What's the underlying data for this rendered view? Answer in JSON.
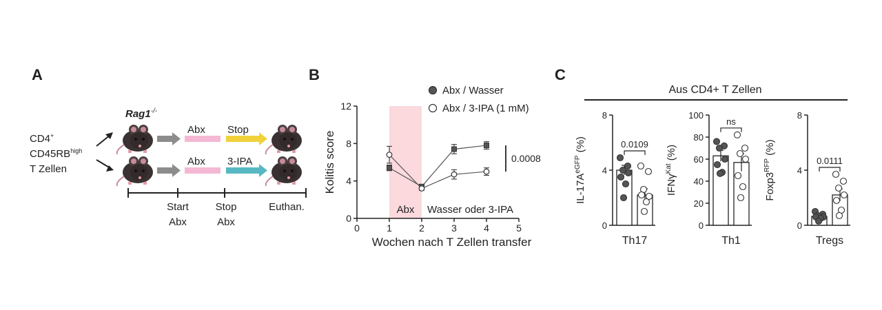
{
  "panels": {
    "A": {
      "letter": "A",
      "mouse_strain": "Rag1",
      "mouse_strain_sup": "-/-",
      "cells_line1": "CD4",
      "cells_line1_sup": "+",
      "cells_line2": "CD45RB",
      "cells_line2_sup": "high",
      "cells_line3": "T Zellen",
      "top_arrow1_label": "Abx",
      "top_arrow2_label": "Stop",
      "bottom_arrow1_label": "Abx",
      "bottom_arrow2_label": "3-IPA",
      "timeline": [
        {
          "line1": "Start",
          "line2": "Abx"
        },
        {
          "line1": "Stop",
          "line2": "Abx"
        },
        {
          "line1": "Euthan.",
          "line2": ""
        }
      ],
      "colors": {
        "mouse": "#3a3232",
        "grey_arrow": "#8c8c8c",
        "pink_arrow": "#f4b8d4",
        "yellow_arrow": "#f2d23a",
        "teal_arrow": "#58b8c2"
      }
    },
    "B": {
      "letter": "B"
    },
    "C": {
      "letter": "C",
      "header": "Aus CD4+ T Zellen"
    }
  },
  "chart_data": [
    {
      "type": "line",
      "panel": "B",
      "xlabel": "Wochen nach T Zellen transfer",
      "ylabel": "Kolitis score",
      "xlim": [
        0,
        5
      ],
      "ylim": [
        0,
        12
      ],
      "xticks": [
        0,
        1,
        2,
        3,
        4,
        5
      ],
      "yticks": [
        0,
        4,
        8,
        12
      ],
      "x": [
        1,
        2,
        3,
        4
      ],
      "series": [
        {
          "name": "Abx / Wasser",
          "marker": "filled",
          "values": [
            5.4,
            3.4,
            7.4,
            7.8
          ],
          "errors": [
            0.3,
            0.2,
            0.5,
            0.4
          ]
        },
        {
          "name": "Abx / 3-IPA (1 mM)",
          "marker": "open",
          "values": [
            6.8,
            3.2,
            4.7,
            5.0
          ],
          "errors": [
            0.9,
            0.2,
            0.5,
            0.4
          ]
        }
      ],
      "shaded_region": {
        "x": [
          1,
          2
        ],
        "label": "Abx",
        "color": "#fbd9dd"
      },
      "region_label_after": "Wasser oder 3-IPA",
      "significance": "0.0008",
      "grid": false,
      "legend_position": "top"
    },
    {
      "type": "bar",
      "panel": "C",
      "xlabel": "Th17",
      "ylabel": "IL-17A",
      "ylabel_sup": "eGFP",
      "ylabel_unit": "(%)",
      "ylim": [
        0,
        8
      ],
      "yticks": [
        0,
        4,
        8
      ],
      "bars": [
        {
          "marker": "filled",
          "mean": 4.0,
          "sem": 0.35,
          "points": [
            4.9,
            4.3,
            4.0,
            3.8,
            3.5,
            3.0,
            2.0
          ]
        },
        {
          "marker": "open",
          "mean": 2.2,
          "sem": 0.45,
          "points": [
            4.3,
            3.9,
            2.6,
            2.1,
            2.2,
            1.7,
            1.0
          ]
        }
      ],
      "significance": "0.0109"
    },
    {
      "type": "bar",
      "panel": "C",
      "xlabel": "Th1",
      "ylabel": "IFNγ",
      "ylabel_sup": "Kat",
      "ylabel_unit": "(%)",
      "ylim": [
        0,
        100
      ],
      "yticks": [
        0,
        20,
        40,
        60,
        80,
        100
      ],
      "bars": [
        {
          "marker": "filled",
          "mean": 63,
          "sem": 5,
          "points": [
            76,
            72,
            70,
            60,
            55,
            48,
            47
          ]
        },
        {
          "marker": "open",
          "mean": 57,
          "sem": 8,
          "points": [
            82,
            70,
            65,
            60,
            45,
            35,
            25
          ]
        }
      ],
      "significance": "ns"
    },
    {
      "type": "bar",
      "panel": "C",
      "xlabel": "Tregs",
      "ylabel": "Foxp3",
      "ylabel_sup": "RFP",
      "ylabel_unit": "(%)",
      "ylim": [
        0,
        8
      ],
      "yticks": [
        0,
        4,
        8
      ],
      "bars": [
        {
          "marker": "filled",
          "mean": 0.65,
          "sem": 0.12,
          "points": [
            1.0,
            0.8,
            0.7,
            0.6,
            0.6,
            0.5,
            0.3
          ]
        },
        {
          "marker": "open",
          "mean": 2.2,
          "sem": 0.45,
          "points": [
            3.7,
            3.2,
            2.7,
            2.2,
            1.8,
            1.1,
            0.7
          ]
        }
      ],
      "significance": "0.0111"
    }
  ]
}
